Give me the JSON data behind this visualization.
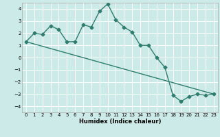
{
  "title": "",
  "xlabel": "Humidex (Indice chaleur)",
  "ylabel": "",
  "bg_color": "#cceae7",
  "grid_color": "#ffffff",
  "line_color": "#2e7d6e",
  "xlim": [
    -0.5,
    23.5
  ],
  "ylim": [
    -4.5,
    4.5
  ],
  "xticks": [
    0,
    1,
    2,
    3,
    4,
    5,
    6,
    7,
    8,
    9,
    10,
    11,
    12,
    13,
    14,
    15,
    16,
    17,
    18,
    19,
    20,
    21,
    22,
    23
  ],
  "yticks": [
    -4,
    -3,
    -2,
    -1,
    0,
    1,
    2,
    3,
    4
  ],
  "series1_x": [
    0,
    1,
    2,
    3,
    4,
    5,
    6,
    7,
    8,
    9,
    10,
    11,
    12,
    13,
    14,
    15,
    16,
    17,
    18,
    19,
    20,
    21,
    22,
    23
  ],
  "series1_y": [
    1.3,
    2.0,
    1.9,
    2.6,
    2.3,
    1.3,
    1.3,
    2.7,
    2.5,
    3.8,
    4.4,
    3.1,
    2.5,
    2.1,
    1.0,
    1.0,
    0.0,
    -0.8,
    -3.1,
    -3.6,
    -3.2,
    -3.0,
    -3.1,
    -3.0
  ],
  "series2_x": [
    0,
    23
  ],
  "series2_y": [
    1.3,
    -3.0
  ],
  "marker_size": 2.5,
  "line_width": 1.0
}
